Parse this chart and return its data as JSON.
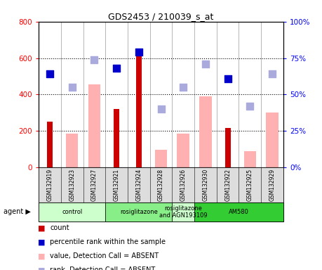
{
  "title": "GDS2453 / 210039_s_at",
  "samples": [
    "GSM132919",
    "GSM132923",
    "GSM132927",
    "GSM132921",
    "GSM132924",
    "GSM132928",
    "GSM132926",
    "GSM132930",
    "GSM132922",
    "GSM132925",
    "GSM132929"
  ],
  "count_values": [
    250,
    null,
    null,
    320,
    625,
    null,
    null,
    null,
    215,
    null,
    null
  ],
  "absent_value": [
    null,
    185,
    455,
    null,
    null,
    95,
    185,
    390,
    null,
    90,
    300
  ],
  "solid_rank_pct": [
    64,
    null,
    null,
    68,
    79,
    null,
    null,
    null,
    61,
    null,
    null
  ],
  "absent_rank_pct": [
    null,
    55,
    74,
    null,
    null,
    40,
    55,
    71,
    null,
    42,
    64
  ],
  "ylim_left": [
    0,
    800
  ],
  "ylim_right": [
    0,
    100
  ],
  "yticks_left": [
    0,
    200,
    400,
    600,
    800
  ],
  "yticks_right": [
    0,
    25,
    50,
    75,
    100
  ],
  "agent_groups": [
    {
      "label": "control",
      "start": 0,
      "end": 3,
      "color": "#ccffcc"
    },
    {
      "label": "rosiglitazone",
      "start": 3,
      "end": 6,
      "color": "#88ee88"
    },
    {
      "label": "rosiglitazone\nand AGN193109",
      "start": 6,
      "end": 7,
      "color": "#ccffcc"
    },
    {
      "label": "AM580",
      "start": 7,
      "end": 11,
      "color": "#33cc33"
    }
  ],
  "color_count": "#cc0000",
  "color_rank": "#0000cc",
  "color_absent_value": "#ffb0b0",
  "color_absent_rank": "#aaaadd",
  "absent_bar_width": 0.55,
  "count_bar_width": 0.25,
  "dot_size": 55,
  "grid_lines": [
    200,
    400,
    600
  ],
  "legend_items": [
    {
      "color": "#cc0000",
      "label": "count"
    },
    {
      "color": "#0000cc",
      "label": "percentile rank within the sample"
    },
    {
      "color": "#ffb0b0",
      "label": "value, Detection Call = ABSENT"
    },
    {
      "color": "#aaaadd",
      "label": "rank, Detection Call = ABSENT"
    }
  ]
}
